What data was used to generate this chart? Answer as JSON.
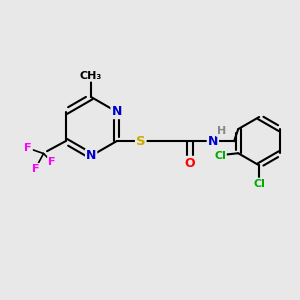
{
  "background_color": "#e8e8e8",
  "bond_color": "#000000",
  "atom_colors": {
    "N": "#0000cc",
    "S": "#ccaa00",
    "O": "#ff0000",
    "F": "#ff00ff",
    "Cl": "#00aa00",
    "H": "#888888",
    "C": "#000000"
  },
  "figsize": [
    3.0,
    3.0
  ],
  "dpi": 100
}
